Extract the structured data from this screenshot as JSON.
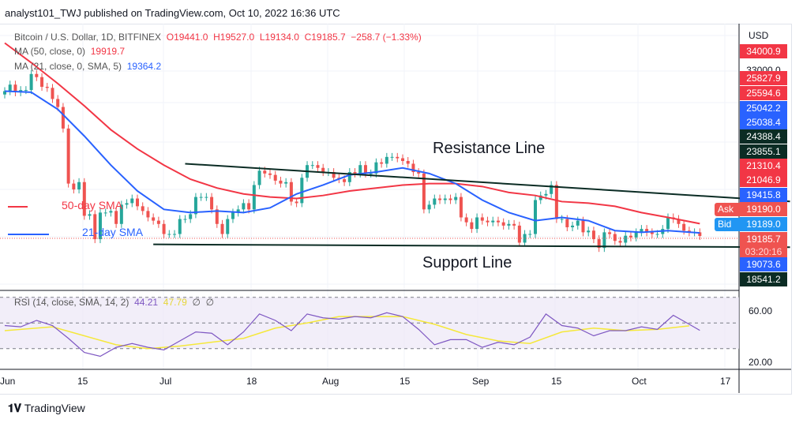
{
  "header": {
    "published": "analyst101_TWJ published on TradingView.com, Oct 10, 2022 16:36 UTC"
  },
  "legend": {
    "symbol": "Bitcoin / U.S. Dollar, 1D, BITFINEX",
    "o": "O19441.0",
    "h": "H19527.0",
    "l": "L19134.0",
    "c": "C19185.7",
    "chg": "−258.7 (−1.33%)",
    "ma50_label": "MA (50, close, 0)",
    "ma50_val": "19919.7",
    "ma21_label": "MA (21, close, 0, SMA, 5)",
    "ma21_val": "19364.2",
    "rsi_label": "RSI (14, close, SMA, 14, 2)",
    "rsi_val": "44.21",
    "rsi_sma_val": "47.79",
    "rsi_na1": "∅",
    "rsi_na2": "∅"
  },
  "annotations": {
    "resistance": "Resistance Line",
    "support": "Support Line",
    "sma50": "50-day SMA",
    "sma21": "21-day SMA"
  },
  "price_axis": {
    "currency": "USD",
    "labels": [
      {
        "v": "34000.9",
        "c": "#f23645"
      },
      {
        "v": "33000.0",
        "c": "#ffffff"
      },
      {
        "v": "25827.9",
        "c": "#f23645"
      },
      {
        "v": "25594.6",
        "c": "#f23645"
      },
      {
        "v": "25042.2",
        "c": "#2962ff"
      },
      {
        "v": "25038.4",
        "c": "#2962ff"
      },
      {
        "v": "24388.4",
        "c": "#0b2c24"
      },
      {
        "v": "23855.1",
        "c": "#0b2c24"
      },
      {
        "v": "21310.4",
        "c": "#f23645"
      },
      {
        "v": "21046.9",
        "c": "#f23645"
      },
      {
        "v": "19415.8",
        "c": "#2962ff"
      },
      {
        "v": "19190.0",
        "c": "#ef5350"
      },
      {
        "v": "19189.0",
        "c": "#2196f3"
      },
      {
        "v": "19185.7",
        "c": "#ef5350"
      },
      {
        "v": "19073.6",
        "c": "#2962ff"
      },
      {
        "v": "18541.2",
        "c": "#0b2c24"
      }
    ],
    "countdown": "03:20:16",
    "ask": "Ask",
    "bid": "Bid"
  },
  "rsi_axis": [
    "60.00",
    "20.00"
  ],
  "time_axis": [
    "Jun",
    "15",
    "Jul",
    "18",
    "Aug",
    "15",
    "Sep",
    "15",
    "Oct",
    "17"
  ],
  "footer": {
    "brand": "TradingView"
  },
  "chart_data": {
    "type": "candlestick",
    "scale": "log",
    "ylim": [
      17000,
      34000
    ],
    "colors": {
      "up": "#26a69a",
      "down": "#ef5350",
      "ma50": "#f23645",
      "ma21": "#2962ff",
      "rsi": "#7e57c2",
      "rsi_sma": "#f5e83b"
    },
    "closes": {
      "2022-06": [
        29800,
        30400,
        29700,
        29900,
        29900,
        31400,
        31100,
        30200,
        30100,
        29100,
        28400,
        26600,
        22500,
        22100,
        22600,
        20400,
        20500,
        19000,
        20600,
        20600,
        20700,
        19900,
        21100,
        21200,
        21500,
        21000,
        20700,
        20300,
        20100,
        19900
      ],
      "2022-07": [
        19300,
        19300,
        19300,
        20200,
        20200,
        20500,
        21600,
        21600,
        21600,
        20800,
        19900,
        19300,
        20200,
        20600,
        20800,
        21200,
        20800,
        22400,
        23400,
        23200,
        23100,
        22700,
        22500,
        22600,
        21300,
        21200,
        22900,
        23800,
        23800,
        23600,
        23300
      ],
      "2022-08": [
        23300,
        22900,
        22800,
        22600,
        23300,
        23200,
        23800,
        23200,
        23200,
        24000,
        23900,
        24400,
        24400,
        24300,
        24100,
        23900,
        23300,
        23200,
        20800,
        21100,
        21500,
        21400,
        21500,
        21400,
        21600,
        20300,
        20000,
        19600,
        20300,
        20100,
        20000
      ],
      "2022-09": [
        20100,
        20000,
        19800,
        19900,
        19800,
        18800,
        19300,
        19300,
        21400,
        21700,
        21800,
        22400,
        20200,
        20200,
        19700,
        19800,
        20100,
        19400,
        19500,
        19000,
        18500,
        19400,
        19300,
        18900,
        18800,
        19200,
        19100,
        19400,
        19600,
        19400
      ],
      "2022-10": [
        19300,
        19300,
        19600,
        20300,
        20200,
        19900,
        19500,
        19400,
        19400,
        19185.7
      ]
    },
    "ma50": [
      [
        "2022-06-01",
        34500
      ],
      [
        "2022-06-06",
        32500
      ],
      [
        "2022-06-11",
        30500
      ],
      [
        "2022-06-16",
        28500
      ],
      [
        "2022-06-21",
        26500
      ],
      [
        "2022-06-26",
        25000
      ],
      [
        "2022-07-01",
        23800
      ],
      [
        "2022-07-06",
        22800
      ],
      [
        "2022-07-11",
        22200
      ],
      [
        "2022-07-16",
        21800
      ],
      [
        "2022-07-21",
        21600
      ],
      [
        "2022-07-26",
        21500
      ],
      [
        "2022-07-31",
        21700
      ],
      [
        "2022-08-05",
        22000
      ],
      [
        "2022-08-10",
        22200
      ],
      [
        "2022-08-15",
        22400
      ],
      [
        "2022-08-20",
        22500
      ],
      [
        "2022-08-25",
        22500
      ],
      [
        "2022-08-30",
        22300
      ],
      [
        "2022-09-04",
        21900
      ],
      [
        "2022-09-09",
        21700
      ],
      [
        "2022-09-14",
        21300
      ],
      [
        "2022-09-19",
        21200
      ],
      [
        "2022-09-24",
        21000
      ],
      [
        "2022-09-29",
        20600
      ],
      [
        "2022-10-04",
        20300
      ],
      [
        "2022-10-10",
        19919.7
      ]
    ],
    "ma21": [
      [
        "2022-06-01",
        29800
      ],
      [
        "2022-06-06",
        29700
      ],
      [
        "2022-06-11",
        28200
      ],
      [
        "2022-06-16",
        26000
      ],
      [
        "2022-06-21",
        23800
      ],
      [
        "2022-06-26",
        22000
      ],
      [
        "2022-07-01",
        20800
      ],
      [
        "2022-07-06",
        20600
      ],
      [
        "2022-07-11",
        20700
      ],
      [
        "2022-07-16",
        20600
      ],
      [
        "2022-07-21",
        20900
      ],
      [
        "2022-07-26",
        21800
      ],
      [
        "2022-07-31",
        22400
      ],
      [
        "2022-08-05",
        23100
      ],
      [
        "2022-08-10",
        23300
      ],
      [
        "2022-08-15",
        23600
      ],
      [
        "2022-08-20",
        23200
      ],
      [
        "2022-08-25",
        22500
      ],
      [
        "2022-08-30",
        21400
      ],
      [
        "2022-09-04",
        20600
      ],
      [
        "2022-09-09",
        20100
      ],
      [
        "2022-09-14",
        20300
      ],
      [
        "2022-09-19",
        20100
      ],
      [
        "2022-09-24",
        19500
      ],
      [
        "2022-09-29",
        19400
      ],
      [
        "2022-10-04",
        19500
      ],
      [
        "2022-10-10",
        19364.2
      ]
    ],
    "resistance": [
      [
        "2022-07-05",
        23900
      ],
      [
        "2022-10-27",
        21310
      ]
    ],
    "support": [
      [
        "2022-06-29",
        18700
      ],
      [
        "2022-10-27",
        18541
      ]
    ],
    "rsi_levels": [
      70,
      50,
      30
    ],
    "rsi": [
      [
        "2022-06-01",
        48
      ],
      [
        "2022-06-04",
        47
      ],
      [
        "2022-06-07",
        52
      ],
      [
        "2022-06-10",
        48
      ],
      [
        "2022-06-13",
        38
      ],
      [
        "2022-06-16",
        27
      ],
      [
        "2022-06-19",
        24
      ],
      [
        "2022-06-22",
        31
      ],
      [
        "2022-06-25",
        34
      ],
      [
        "2022-06-28",
        31
      ],
      [
        "2022-07-01",
        29
      ],
      [
        "2022-07-04",
        36
      ],
      [
        "2022-07-07",
        43
      ],
      [
        "2022-07-10",
        42
      ],
      [
        "2022-07-13",
        33
      ],
      [
        "2022-07-16",
        43
      ],
      [
        "2022-07-19",
        57
      ],
      [
        "2022-07-22",
        52
      ],
      [
        "2022-07-25",
        44
      ],
      [
        "2022-07-28",
        57
      ],
      [
        "2022-07-31",
        54
      ],
      [
        "2022-08-03",
        53
      ],
      [
        "2022-08-06",
        55
      ],
      [
        "2022-08-09",
        54
      ],
      [
        "2022-08-12",
        58
      ],
      [
        "2022-08-15",
        55
      ],
      [
        "2022-08-18",
        45
      ],
      [
        "2022-08-21",
        33
      ],
      [
        "2022-08-24",
        37
      ],
      [
        "2022-08-27",
        37
      ],
      [
        "2022-08-30",
        31
      ],
      [
        "2022-09-02",
        35
      ],
      [
        "2022-09-05",
        33
      ],
      [
        "2022-09-08",
        39
      ],
      [
        "2022-09-11",
        57
      ],
      [
        "2022-09-14",
        48
      ],
      [
        "2022-09-17",
        46
      ],
      [
        "2022-09-20",
        40
      ],
      [
        "2022-09-23",
        44
      ],
      [
        "2022-09-26",
        44
      ],
      [
        "2022-09-29",
        47
      ],
      [
        "2022-10-02",
        45
      ],
      [
        "2022-10-05",
        56
      ],
      [
        "2022-10-08",
        49
      ],
      [
        "2022-10-10",
        44.21
      ]
    ],
    "rsi_sma": [
      [
        "2022-06-01",
        44
      ],
      [
        "2022-06-10",
        47
      ],
      [
        "2022-06-16",
        40
      ],
      [
        "2022-06-22",
        33
      ],
      [
        "2022-06-28",
        30
      ],
      [
        "2022-07-04",
        32
      ],
      [
        "2022-07-10",
        35
      ],
      [
        "2022-07-16",
        38
      ],
      [
        "2022-07-22",
        46
      ],
      [
        "2022-07-28",
        50
      ],
      [
        "2022-08-03",
        55
      ],
      [
        "2022-08-09",
        55
      ],
      [
        "2022-08-15",
        55
      ],
      [
        "2022-08-21",
        49
      ],
      [
        "2022-08-27",
        41
      ],
      [
        "2022-09-02",
        36
      ],
      [
        "2022-09-08",
        34
      ],
      [
        "2022-09-14",
        43
      ],
      [
        "2022-09-20",
        46
      ],
      [
        "2022-09-26",
        44
      ],
      [
        "2022-10-02",
        45
      ],
      [
        "2022-10-08",
        47.79
      ]
    ]
  }
}
